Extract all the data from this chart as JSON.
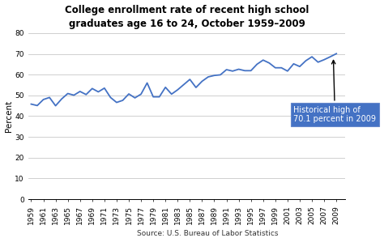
{
  "title": "College enrollment rate of recent high school\ngraduates age 16 to 24, October 1959–2009",
  "source_label": "Source: U.S. Bureau of Labor Statistics",
  "ylabel": "Percent",
  "years": [
    1959,
    1960,
    1961,
    1962,
    1963,
    1964,
    1965,
    1966,
    1967,
    1968,
    1969,
    1970,
    1971,
    1972,
    1973,
    1974,
    1975,
    1976,
    1977,
    1978,
    1979,
    1980,
    1981,
    1982,
    1983,
    1984,
    1985,
    1986,
    1987,
    1988,
    1989,
    1990,
    1991,
    1992,
    1993,
    1994,
    1995,
    1996,
    1997,
    1998,
    1999,
    2000,
    2001,
    2002,
    2003,
    2004,
    2005,
    2006,
    2007,
    2008,
    2009
  ],
  "values": [
    45.8,
    45.1,
    48.0,
    49.0,
    45.0,
    48.3,
    50.9,
    50.1,
    51.9,
    50.4,
    53.3,
    51.7,
    53.5,
    49.0,
    46.6,
    47.6,
    50.7,
    48.8,
    50.6,
    56.0,
    49.3,
    49.3,
    53.9,
    50.6,
    52.7,
    55.2,
    57.7,
    53.8,
    56.8,
    58.9,
    59.6,
    59.9,
    62.4,
    61.7,
    62.6,
    61.9,
    61.9,
    65.0,
    67.0,
    65.6,
    63.3,
    63.3,
    61.7,
    65.2,
    63.9,
    66.7,
    68.6,
    66.0,
    67.2,
    68.6,
    70.1
  ],
  "line_color": "#4472c4",
  "annotation_text": "Historical high of\n70.1 percent in 2009",
  "annotation_box_color": "#4472c4",
  "annotation_text_color": "white",
  "ylim": [
    0,
    80
  ],
  "yticks": [
    0,
    10,
    20,
    30,
    40,
    50,
    60,
    70,
    80
  ],
  "bg_color": "white",
  "grid_color": "#c8c8c8",
  "title_fontsize": 8.5,
  "ylabel_fontsize": 7.5,
  "tick_fontsize": 6.5,
  "source_fontsize": 6.5,
  "annot_fontsize": 7.0,
  "xlim_left": 1958.5,
  "xlim_right": 2010.5
}
